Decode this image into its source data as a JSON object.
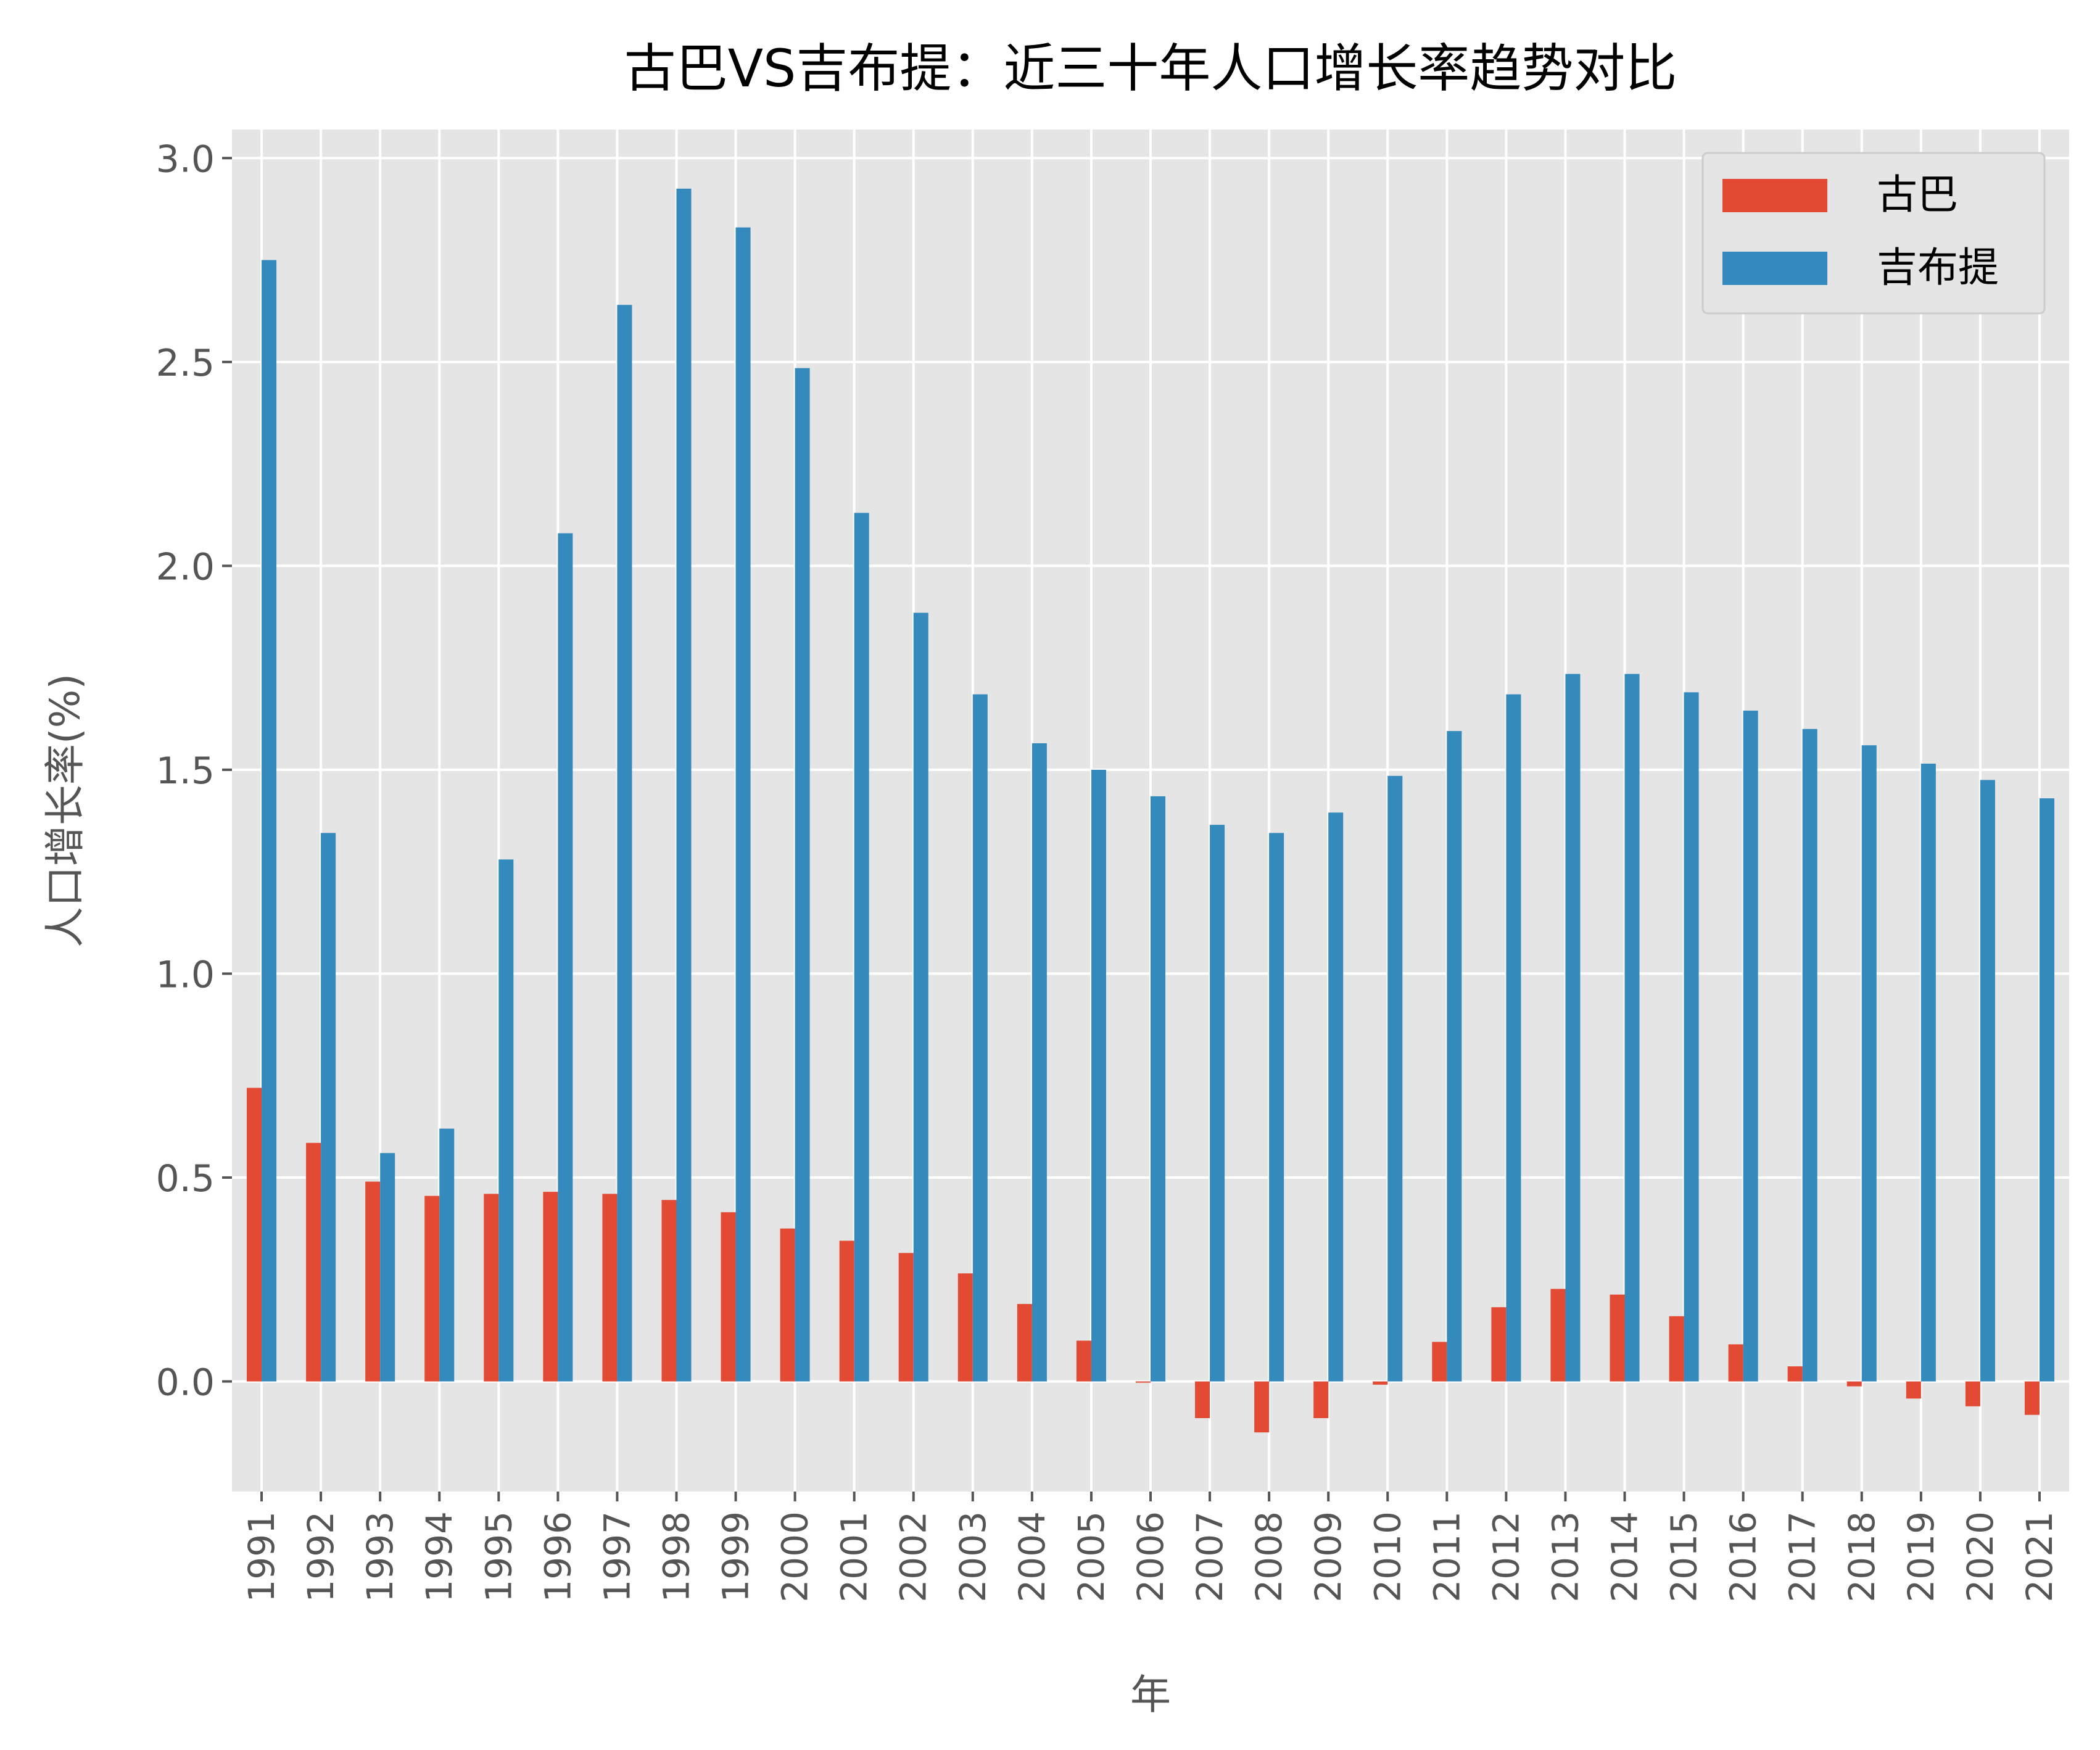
{
  "chart_data": {
    "type": "bar",
    "title": "古巴VS吉布提：近三十年人口增长率趋势对比",
    "xlabel": "年",
    "ylabel": "人口增长率(%)",
    "categories": [
      "1991",
      "1992",
      "1993",
      "1994",
      "1995",
      "1996",
      "1997",
      "1998",
      "1999",
      "2000",
      "2001",
      "2002",
      "2003",
      "2004",
      "2005",
      "2006",
      "2007",
      "2008",
      "2009",
      "2010",
      "2011",
      "2012",
      "2013",
      "2014",
      "2015",
      "2016",
      "2017",
      "2018",
      "2019",
      "2020",
      "2021"
    ],
    "series": [
      {
        "name": "古巴",
        "color": "#E24A33",
        "values": [
          0.72,
          0.585,
          0.49,
          0.455,
          0.46,
          0.465,
          0.46,
          0.445,
          0.415,
          0.375,
          0.345,
          0.315,
          0.265,
          0.19,
          0.1,
          -0.003,
          -0.09,
          -0.125,
          -0.09,
          -0.008,
          0.097,
          0.182,
          0.227,
          0.213,
          0.16,
          0.091,
          0.037,
          -0.012,
          -0.042,
          -0.061,
          -0.082
        ]
      },
      {
        "name": "吉布提",
        "color": "#348ABD",
        "values": [
          2.75,
          1.345,
          0.56,
          0.62,
          1.28,
          2.08,
          2.64,
          2.925,
          2.83,
          2.485,
          2.13,
          1.885,
          1.685,
          1.565,
          1.5,
          1.435,
          1.365,
          1.345,
          1.395,
          1.485,
          1.595,
          1.685,
          1.735,
          1.735,
          1.69,
          1.645,
          1.6,
          1.56,
          1.515,
          1.475,
          1.43
        ]
      }
    ],
    "ylim": [
      -0.27,
      3.07
    ],
    "yticks": [
      "0.0",
      "0.5",
      "1.0",
      "1.5",
      "2.0",
      "2.5",
      "3.0"
    ],
    "grid": true,
    "legend": "top-right",
    "style": {
      "plot_bg": "#E5E5E5",
      "grid_color": "#FFFFFF",
      "text_color": "#555555",
      "title_color": "#000000"
    }
  }
}
